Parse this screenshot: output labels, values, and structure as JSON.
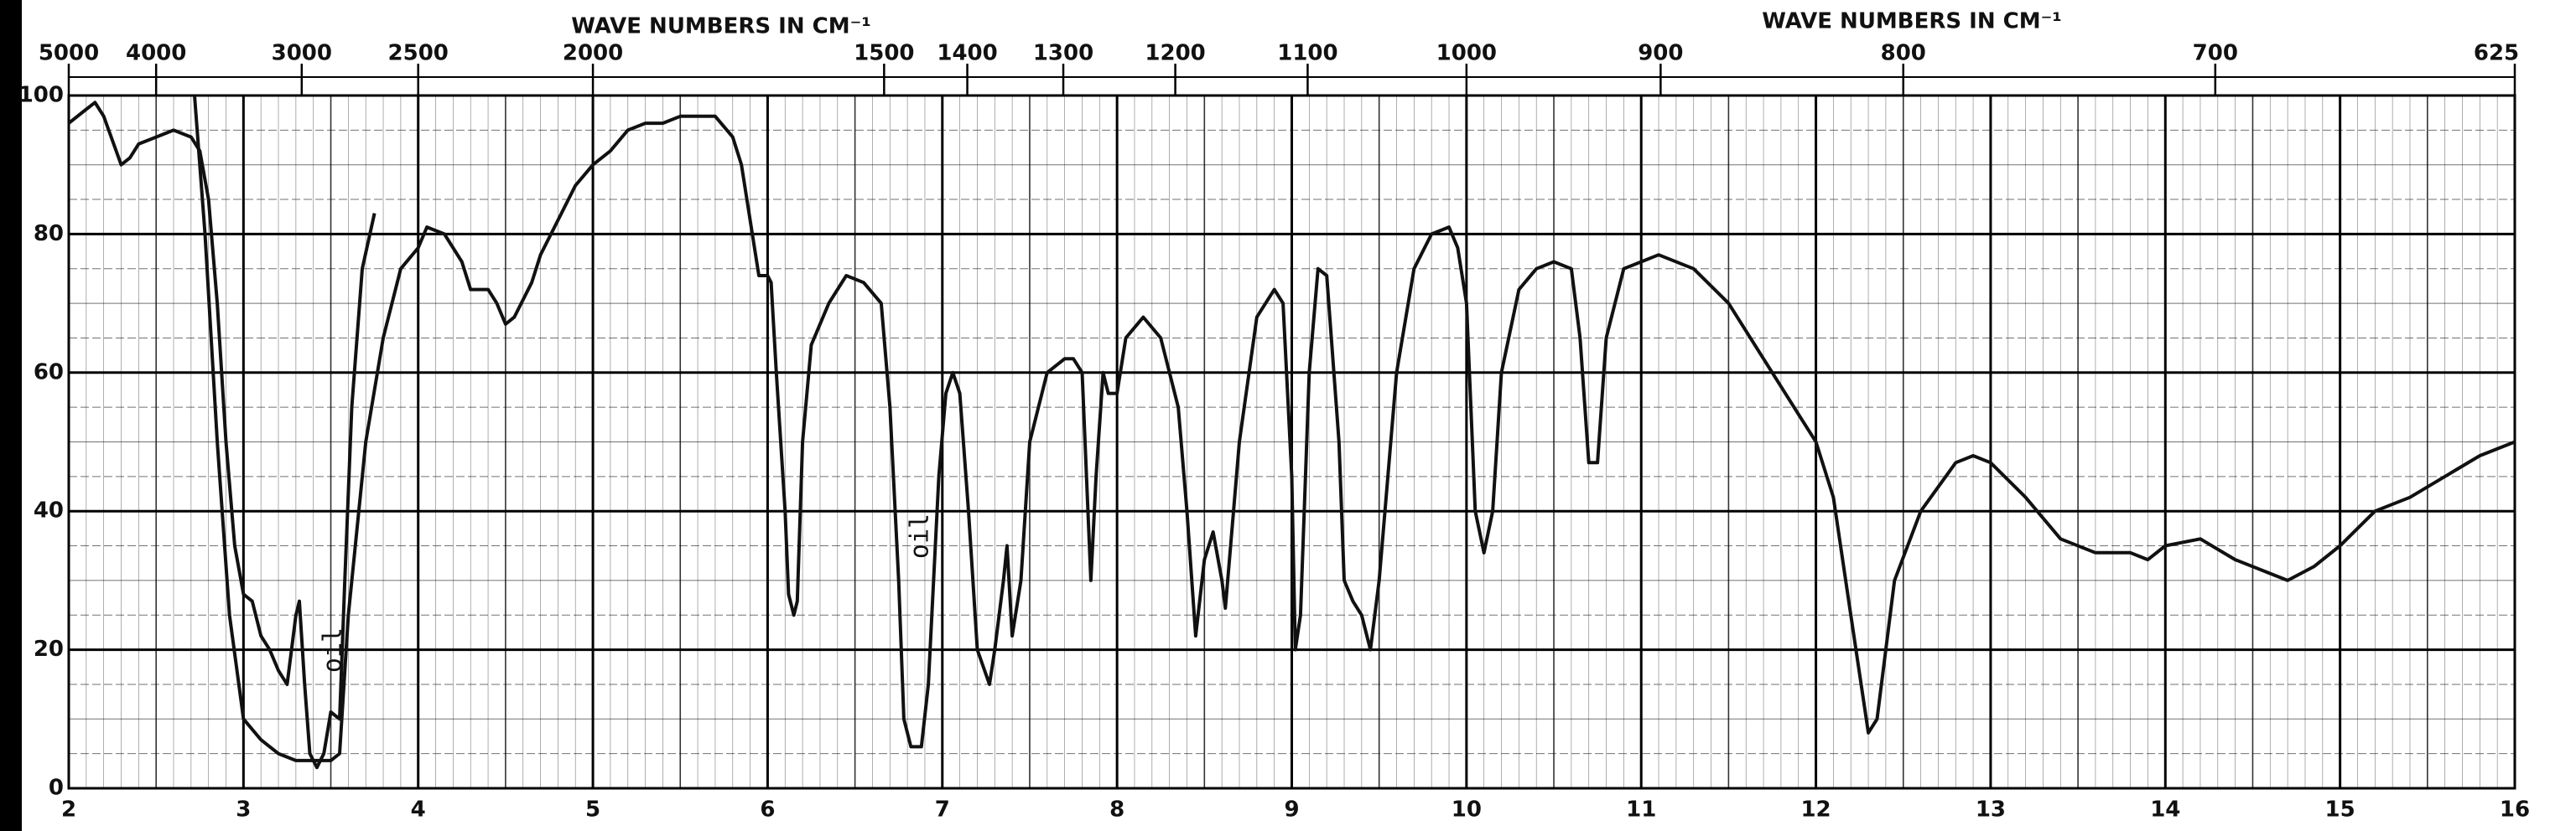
{
  "chart_data": {
    "type": "line",
    "x2_labels": [
      "WAVE NUMBERS IN CM⁻¹",
      "WAVE NUMBERS IN CM⁻¹"
    ],
    "annotations": [
      "oil",
      "oil"
    ],
    "xlim": [
      2,
      16
    ],
    "xticks": [
      2,
      3,
      4,
      5,
      6,
      7,
      8,
      9,
      10,
      11,
      12,
      13,
      14,
      15,
      16
    ],
    "ylim": [
      0,
      100
    ],
    "yticks": [
      0,
      20,
      40,
      60,
      80,
      100
    ],
    "x2ticks": [
      5000,
      4000,
      3000,
      2500,
      2000,
      1500,
      1400,
      1300,
      1200,
      1100,
      1000,
      900,
      800,
      700,
      625
    ],
    "grid": true,
    "series": [
      {
        "color": "#111111",
        "x": [
          2.0,
          2.1,
          2.15,
          2.2,
          2.3,
          2.35,
          2.4,
          2.5,
          2.6,
          2.7,
          2.75,
          2.8,
          2.85,
          2.9,
          2.95,
          3.0,
          3.05,
          3.1,
          3.15,
          3.2,
          3.25,
          3.3,
          3.32,
          3.35,
          3.38,
          3.42,
          3.46,
          3.5,
          3.55,
          3.58,
          3.62,
          3.68,
          3.75
        ],
        "values": [
          96,
          98,
          99,
          97,
          90,
          91,
          93,
          94,
          95,
          94,
          92,
          85,
          70,
          50,
          35,
          28,
          27,
          22,
          20,
          17,
          15,
          25,
          27,
          15,
          5,
          3,
          5,
          11,
          10,
          30,
          55,
          75,
          83
        ]
      },
      {
        "color": "#111111",
        "x": [
          2.72,
          2.78,
          2.85,
          2.92,
          3.0,
          3.1,
          3.2,
          3.3,
          3.4,
          3.5,
          3.55,
          3.6,
          3.7,
          3.8,
          3.9,
          4.0,
          4.05,
          4.15,
          4.25,
          4.3,
          4.4,
          4.45,
          4.5,
          4.55,
          4.65,
          4.7,
          4.8,
          4.9,
          5.0,
          5.1,
          5.2,
          5.3,
          5.4,
          5.5,
          5.6,
          5.7,
          5.8,
          5.85,
          5.9,
          5.95,
          6.0,
          6.02,
          6.05,
          6.1,
          6.12,
          6.15,
          6.17,
          6.2,
          6.25,
          6.35,
          6.45,
          6.55,
          6.65,
          6.7,
          6.75,
          6.78,
          6.82,
          6.88,
          6.92,
          6.98,
          7.02,
          7.06,
          7.1,
          7.15,
          7.2,
          7.27,
          7.3,
          7.35,
          7.37,
          7.4,
          7.45,
          7.5,
          7.6,
          7.7,
          7.75,
          7.8,
          7.85,
          7.88,
          7.92,
          7.95,
          8.0,
          8.05,
          8.15,
          8.25,
          8.35,
          8.4,
          8.45,
          8.5,
          8.55,
          8.6,
          8.62,
          8.7,
          8.8,
          8.9,
          8.95,
          9.0,
          9.02,
          9.05,
          9.1,
          9.15,
          9.2,
          9.27,
          9.3,
          9.35,
          9.4,
          9.45,
          9.5,
          9.6,
          9.7,
          9.8,
          9.9,
          9.95,
          10.0,
          10.05,
          10.1,
          10.15,
          10.2,
          10.3,
          10.4,
          10.5,
          10.6,
          10.65,
          10.7,
          10.75,
          10.8,
          10.9,
          11.0,
          11.1,
          11.3,
          11.5,
          11.7,
          11.9,
          12.0,
          12.1,
          12.2,
          12.3,
          12.35,
          12.45,
          12.6,
          12.8,
          12.9,
          13.0,
          13.2,
          13.4,
          13.6,
          13.8,
          13.9,
          14.0,
          14.2,
          14.4,
          14.6,
          14.7,
          14.85,
          15.0,
          15.2,
          15.4,
          15.6,
          15.8,
          16.0
        ],
        "values": [
          100,
          80,
          50,
          25,
          10,
          7,
          5,
          4,
          4,
          4,
          5,
          25,
          50,
          65,
          75,
          78,
          81,
          80,
          76,
          72,
          72,
          70,
          67,
          68,
          73,
          77,
          82,
          87,
          90,
          92,
          95,
          96,
          96,
          97,
          97,
          97,
          94,
          90,
          82,
          74,
          74,
          73,
          60,
          40,
          28,
          25,
          27,
          50,
          64,
          70,
          74,
          73,
          70,
          55,
          30,
          10,
          6,
          6,
          15,
          45,
          57,
          60,
          57,
          40,
          20,
          15,
          20,
          30,
          35,
          22,
          30,
          50,
          60,
          62,
          62,
          60,
          30,
          45,
          60,
          57,
          57,
          65,
          68,
          65,
          55,
          40,
          22,
          33,
          37,
          30,
          26,
          50,
          68,
          72,
          70,
          45,
          20,
          25,
          60,
          75,
          74,
          50,
          30,
          27,
          25,
          20,
          30,
          60,
          75,
          80,
          81,
          78,
          70,
          40,
          34,
          40,
          60,
          72,
          75,
          76,
          75,
          65,
          47,
          47,
          65,
          75,
          76,
          77,
          75,
          70,
          62,
          54,
          50,
          42,
          25,
          8,
          10,
          30,
          40,
          47,
          48,
          47,
          42,
          36,
          34,
          34,
          33,
          35,
          36,
          33,
          31,
          30,
          32,
          35,
          40,
          42,
          45,
          48,
          50
        ]
      }
    ]
  }
}
